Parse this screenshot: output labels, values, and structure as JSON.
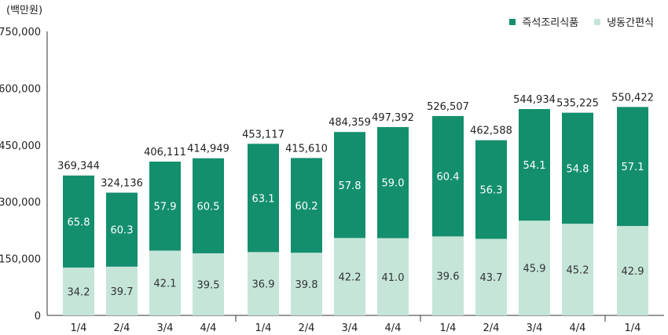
{
  "chart_data": {
    "type": "bar",
    "stacked": true,
    "unit_label": "(백만원)",
    "categories": [
      "1/4",
      "2/4",
      "3/4",
      "4/4",
      "1/4",
      "2/4",
      "3/4",
      "4/4",
      "1/4",
      "2/4",
      "3/4",
      "4/4",
      "1/4"
    ],
    "totals": [
      "369,344",
      "324,136",
      "406,111",
      "414,949",
      "453,117",
      "415,610",
      "484,359",
      "497,392",
      "526,507",
      "462,588",
      "544,934",
      "535,225",
      "550,422"
    ],
    "total_values": [
      369344,
      324136,
      406111,
      414949,
      453117,
      415610,
      484359,
      497392,
      526507,
      462588,
      544934,
      535225,
      550422
    ],
    "groups": [
      4,
      4,
      4,
      1
    ],
    "series": [
      {
        "name": "냉동간편식",
        "color": "#c5e5d9",
        "shares": [
          "34.2",
          "39.7",
          "42.1",
          "39.5",
          "36.9",
          "39.8",
          "42.2",
          "41.0",
          "39.6",
          "43.7",
          "45.9",
          "45.2",
          "42.9"
        ]
      },
      {
        "name": "즉석조리식품",
        "color": "#148f6e",
        "shares": [
          "65.8",
          "60.3",
          "57.9",
          "60.5",
          "63.1",
          "60.2",
          "57.8",
          "59.0",
          "60.4",
          "56.3",
          "54.1",
          "54.8",
          "57.1"
        ]
      }
    ],
    "y_ticks": [
      "0",
      "150,000",
      "300,000",
      "450,000",
      "600,000",
      "750,000"
    ],
    "ylim": [
      0,
      750000
    ],
    "legend_position": "top-right"
  }
}
